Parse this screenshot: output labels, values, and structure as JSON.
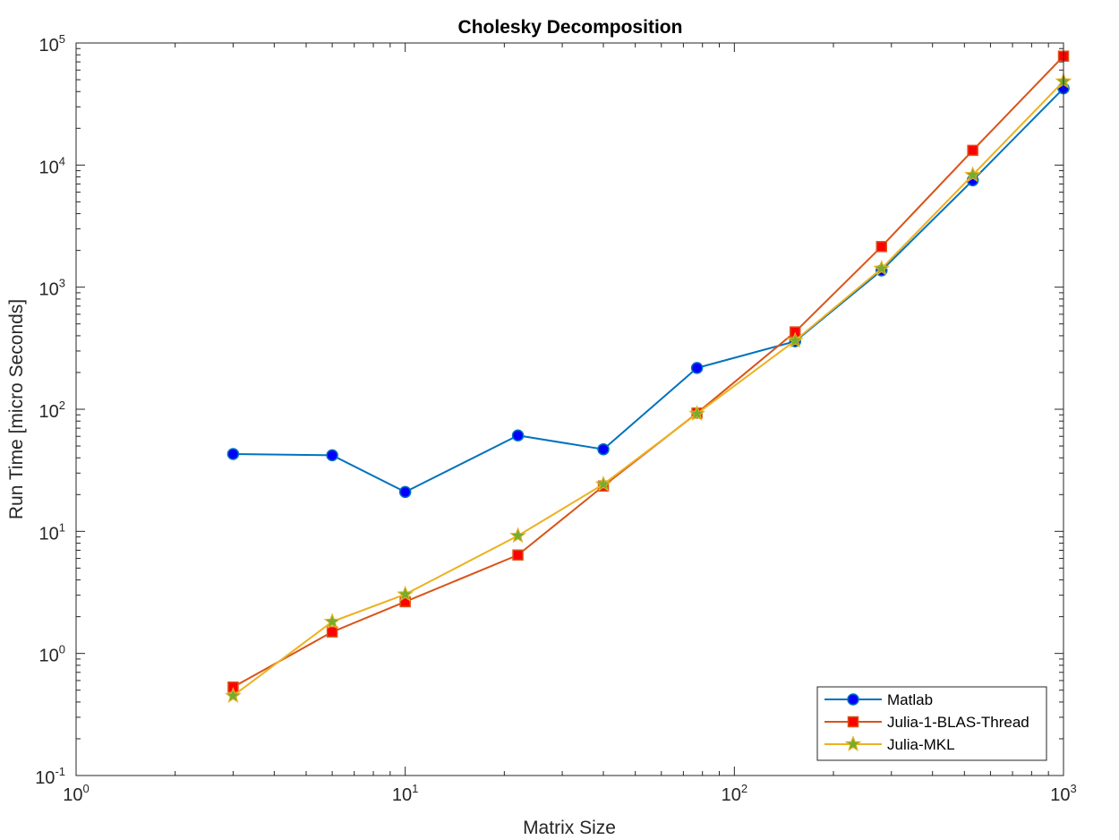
{
  "chart_data": {
    "type": "line",
    "title": "Cholesky Decomposition",
    "xlabel": "Matrix Size",
    "ylabel": "Run Time  [micro Seconds]",
    "xscale": "log",
    "yscale": "log",
    "xlim": [
      1,
      1000
    ],
    "ylim": [
      0.1,
      100000
    ],
    "x_ticks": [
      {
        "base": "10",
        "exp": "0"
      },
      {
        "base": "10",
        "exp": "1"
      },
      {
        "base": "10",
        "exp": "2"
      },
      {
        "base": "10",
        "exp": "3"
      }
    ],
    "y_ticks": [
      {
        "base": "10",
        "exp": "-1"
      },
      {
        "base": "10",
        "exp": "0"
      },
      {
        "base": "10",
        "exp": "1"
      },
      {
        "base": "10",
        "exp": "2"
      },
      {
        "base": "10",
        "exp": "3"
      },
      {
        "base": "10",
        "exp": "4"
      },
      {
        "base": "10",
        "exp": "5"
      }
    ],
    "grid": false,
    "legend_position": "bottom-right",
    "x": [
      3,
      6,
      10,
      22,
      40,
      77,
      153,
      280,
      530,
      1000
    ],
    "series": [
      {
        "name": "Matlab",
        "values": [
          43,
          42,
          21,
          61,
          47,
          218,
          360,
          1370,
          7500,
          42500
        ],
        "color": "#0072BD",
        "marker": "circle",
        "marker_face": "#0000FF"
      },
      {
        "name": "Julia-1-BLAS-Thread",
        "values": [
          0.53,
          1.5,
          2.65,
          6.4,
          23.5,
          93,
          430,
          2150,
          13200,
          78000
        ],
        "color": "#D95319",
        "marker": "square",
        "marker_face": "#FF0000"
      },
      {
        "name": "Julia-MKL",
        "values": [
          0.45,
          1.82,
          3.05,
          9.2,
          24.3,
          92,
          365,
          1420,
          8300,
          48500
        ],
        "color": "#EDB120",
        "marker": "star",
        "marker_face": "#77AC30"
      }
    ]
  }
}
